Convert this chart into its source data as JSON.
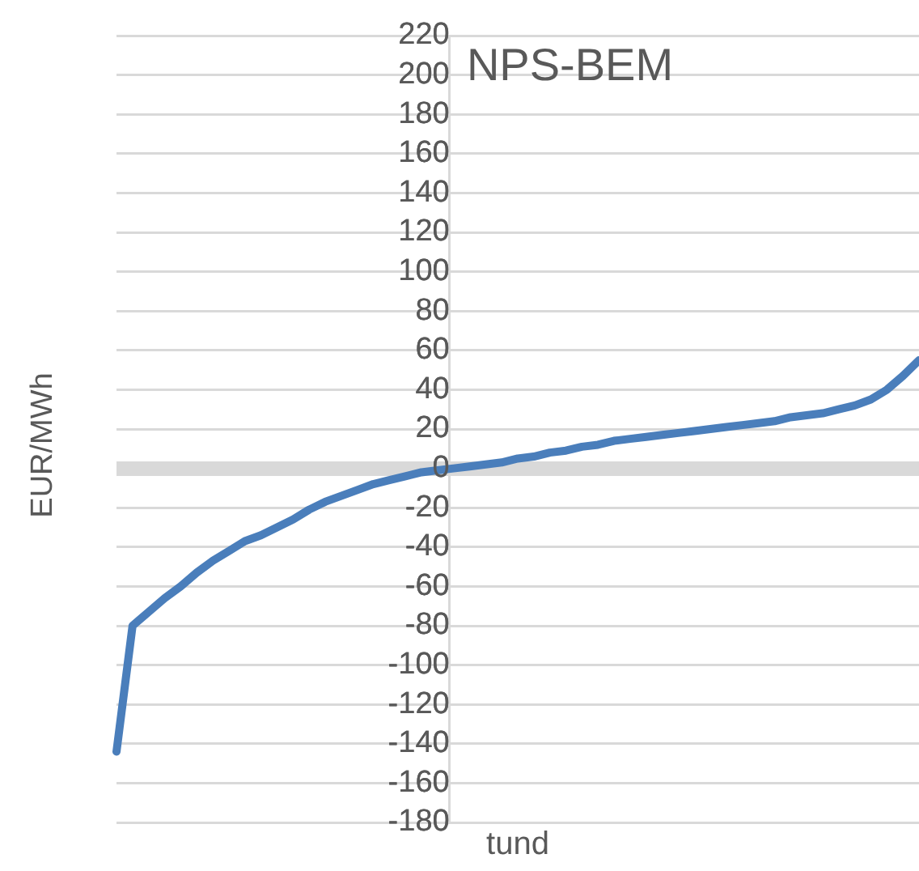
{
  "chart_data": {
    "type": "line",
    "title": "NPS-BEM",
    "xlabel": "tund",
    "ylabel": "EUR/MWh",
    "categories": [
      null,
      null,
      null,
      null,
      null,
      null,
      null,
      null,
      null,
      null,
      null,
      null,
      null,
      null,
      null,
      null,
      null,
      null,
      null,
      null,
      null,
      null,
      null,
      null,
      null,
      null,
      null,
      null,
      null,
      null,
      null,
      null,
      null,
      null,
      null,
      null,
      null,
      null,
      null,
      null,
      null,
      null,
      null,
      null,
      null,
      null,
      null,
      null,
      null,
      null,
      null
    ],
    "series": [
      {
        "color": "#4a7ebb",
        "values": [
          -144,
          -80,
          -73,
          -66,
          -60,
          -53,
          -47,
          -42,
          -37,
          -34,
          -30,
          -26,
          -21,
          -17,
          -14,
          -11,
          -8,
          -6,
          -4,
          -2,
          -1,
          0,
          1,
          2,
          3,
          5,
          6,
          8,
          9,
          11,
          12,
          14,
          15,
          16,
          17,
          18,
          19,
          20,
          21,
          22,
          23,
          24,
          26,
          27,
          28,
          30,
          32,
          35,
          40,
          47,
          55
        ]
      }
    ],
    "ylim": [
      -180,
      220
    ],
    "yticks": [
      -180,
      -160,
      -140,
      -120,
      -100,
      -80,
      -60,
      -40,
      -20,
      0,
      20,
      40,
      60,
      80,
      100,
      120,
      140,
      160,
      180,
      200,
      220
    ],
    "grid": "y",
    "marker": "none",
    "line_style": "solid",
    "tick_labels": "y"
  }
}
